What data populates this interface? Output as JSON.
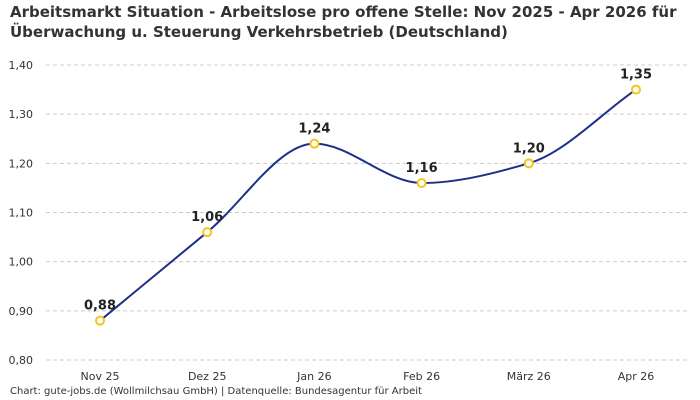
{
  "title_lines": [
    "Arbeitsmarkt Situation - Arbeitslose pro offene Stelle: Nov 2025 - Apr 2026 für",
    "Überwachung u. Steuerung Verkehrsbetrieb (Deutschland)"
  ],
  "source": "Chart: gute-jobs.de (Wollmilchsau GmbH) | Datenquelle: Bundesagentur für Arbeit",
  "colors": {
    "line": "#1e2f8a",
    "marker": "#f5c518",
    "grid": "#cccccc"
  },
  "chart_data": {
    "type": "line",
    "categories": [
      "Nov 25",
      "Dez 25",
      "Jan 26",
      "Feb 26",
      "März 26",
      "Apr 26"
    ],
    "series": [
      {
        "values": [
          0.88,
          1.06,
          1.24,
          1.16,
          1.2,
          1.35
        ],
        "labels": [
          "0,88",
          "1,06",
          "1,24",
          "1,16",
          "1,20",
          "1,35"
        ]
      }
    ],
    "yticks": [
      0.8,
      0.9,
      1.0,
      1.1,
      1.2,
      1.3,
      1.4
    ],
    "ytick_labels": [
      "0,80",
      "0,90",
      "1,00",
      "1,10",
      "1,20",
      "1,30",
      "1,40"
    ],
    "ylim": [
      0.8,
      1.4
    ],
    "grid": true,
    "xlabel": "",
    "ylabel": ""
  }
}
